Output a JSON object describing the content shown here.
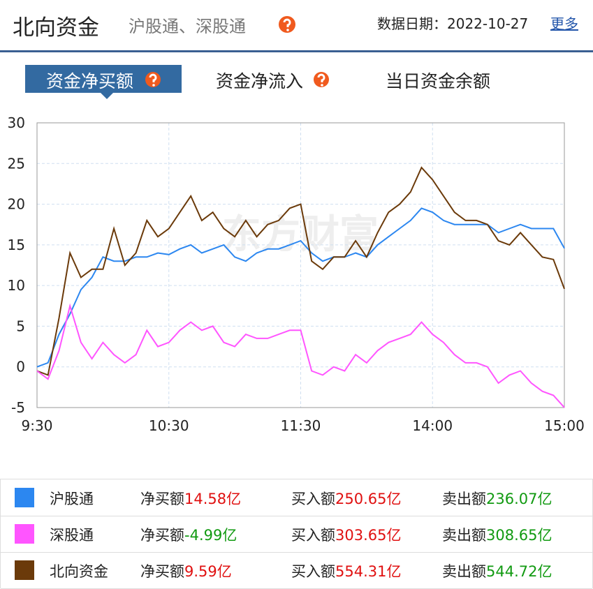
{
  "header": {
    "title": "北向资金",
    "subtitle": "沪股通、深股通",
    "date_label": "数据日期：",
    "date": "2022-10-27",
    "more": "更多"
  },
  "tabs": [
    "资金净买额",
    "资金净流入",
    "当日资金余额"
  ],
  "chart_data": {
    "type": "line",
    "watermark": "东方财富",
    "x": [
      0,
      5,
      10,
      15,
      20,
      25,
      30,
      35,
      40,
      45,
      50,
      55,
      60,
      65,
      70,
      75,
      80,
      85,
      90,
      95,
      100,
      105,
      110,
      115,
      120,
      125,
      130,
      135,
      140,
      145,
      150,
      155,
      160,
      165,
      170,
      175,
      180,
      185,
      190,
      195,
      200,
      205,
      210,
      215,
      220,
      225,
      230,
      235,
      240
    ],
    "xlim": [
      0,
      240
    ],
    "xticks": [
      {
        "value": 0,
        "label": "9:30"
      },
      {
        "value": 60,
        "label": "10:30"
      },
      {
        "value": 120,
        "label": "11:30"
      },
      {
        "value": 180,
        "label": "14:00"
      },
      {
        "value": 240,
        "label": "15:00"
      }
    ],
    "ylim": [
      -5,
      30
    ],
    "yticks": [
      -5,
      0,
      5,
      10,
      15,
      20,
      25,
      30
    ],
    "grid": true,
    "series": [
      {
        "name": "沪股通",
        "color": "#2c87f0",
        "values": [
          0,
          0.5,
          4,
          6.5,
          9.5,
          11,
          13.5,
          13,
          13,
          13.5,
          13.5,
          14,
          13.8,
          14.5,
          15,
          14,
          14.5,
          15,
          13.5,
          13,
          14,
          14.5,
          14.5,
          15,
          15.5,
          14,
          13,
          13.5,
          13.5,
          14,
          13.5,
          15,
          16,
          17,
          18,
          19.5,
          19,
          18,
          17.5,
          17.5,
          17.5,
          17.5,
          16.5,
          17,
          17.5,
          17,
          17,
          17,
          14.58
        ]
      },
      {
        "name": "深股通",
        "color": "#ff55ff",
        "values": [
          -0.5,
          -1.5,
          2,
          7.5,
          3,
          1,
          3,
          1.5,
          0.5,
          1.5,
          4.5,
          2.5,
          3,
          4.5,
          5.5,
          4.5,
          5,
          3,
          2.5,
          4,
          3.5,
          3.5,
          4,
          4.5,
          4.5,
          -0.5,
          -1,
          0,
          -0.5,
          1.5,
          0.5,
          2,
          3,
          3.5,
          4,
          5.5,
          4,
          3,
          1.5,
          0.5,
          0.5,
          0,
          -2,
          -1,
          -0.5,
          -2,
          -3,
          -3.5,
          -4.99
        ]
      },
      {
        "name": "北向资金",
        "color": "#6b3a0a",
        "values": [
          -0.5,
          -1,
          6,
          14,
          11,
          12,
          12,
          17,
          12.5,
          14,
          18,
          16,
          17,
          19,
          21,
          18,
          19,
          17,
          16,
          18,
          16,
          17.5,
          18,
          19.5,
          20,
          13,
          12,
          13.5,
          13.5,
          15.5,
          13.5,
          16.5,
          19,
          20,
          21.5,
          24.5,
          23,
          21,
          19,
          18,
          18,
          17.5,
          15.5,
          15,
          16.5,
          15,
          13.5,
          13.2,
          9.59
        ]
      }
    ]
  },
  "summary": {
    "net_label": "净买额",
    "buy_label": "买入额",
    "sell_label": "卖出额",
    "unit": "亿",
    "rows": [
      {
        "net": 14.58,
        "buy": 250.65,
        "sell": 236.07
      },
      {
        "net": -4.99,
        "buy": 303.65,
        "sell": 308.65
      },
      {
        "net": 9.59,
        "buy": 554.31,
        "sell": 544.72
      }
    ]
  }
}
